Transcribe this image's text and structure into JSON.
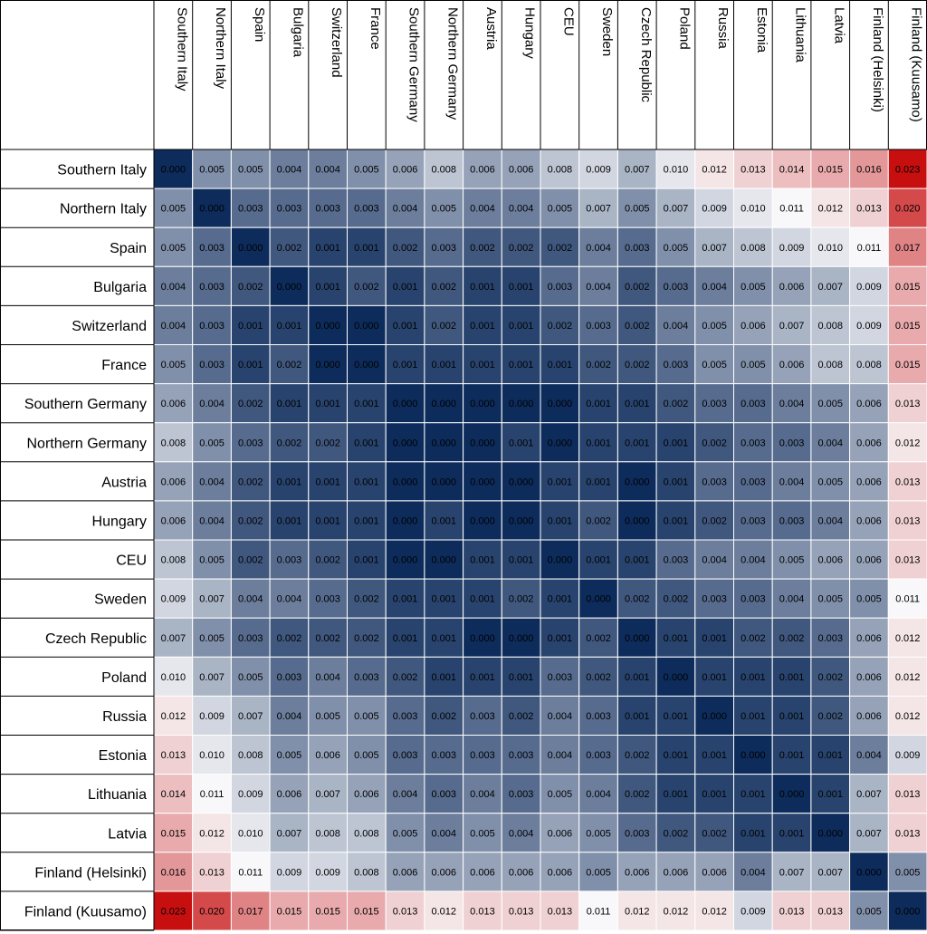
{
  "chart_data": {
    "type": "heatmap",
    "rows": [
      "Southern Italy",
      "Northern Italy",
      "Spain",
      "Bulgaria",
      "Switzerland",
      "France",
      "Southern Germany",
      "Northern Germany",
      "Austria",
      "Hungary",
      "CEU",
      "Sweden",
      "Czech Republic",
      "Poland",
      "Russia",
      "Estonia",
      "Lithuania",
      "Latvia",
      "Finland (Helsinki)",
      "Finland (Kuusamo)"
    ],
    "columns": [
      "Southern Italy",
      "Northern Italy",
      "Spain",
      "Bulgaria",
      "Switzerland",
      "France",
      "Southern Germany",
      "Northern Germany",
      "Austria",
      "Hungary",
      "CEU",
      "Sweden",
      "Czech Republic",
      "Poland",
      "Russia",
      "Estonia",
      "Lithuania",
      "Latvia",
      "Finland (Helsinki)",
      "Finland (Kuusamo)"
    ],
    "values": [
      [
        "0.000",
        "0.005",
        "0.005",
        "0.004",
        "0.004",
        "0.005",
        "0.006",
        "0.008",
        "0.006",
        "0.006",
        "0.008",
        "0.009",
        "0.007",
        "0.010",
        "0.012",
        "0.013",
        "0.014",
        "0.015",
        "0.016",
        "0.023"
      ],
      [
        "0.005",
        "0.000",
        "0.003",
        "0.003",
        "0.003",
        "0.003",
        "0.004",
        "0.005",
        "0.004",
        "0.004",
        "0.005",
        "0.007",
        "0.005",
        "0.007",
        "0.009",
        "0.010",
        "0.011",
        "0.012",
        "0.013",
        "0.020"
      ],
      [
        "0.005",
        "0.003",
        "0.000",
        "0.002",
        "0.001",
        "0.001",
        "0.002",
        "0.003",
        "0.002",
        "0.002",
        "0.002",
        "0.004",
        "0.003",
        "0.005",
        "0.007",
        "0.008",
        "0.009",
        "0.010",
        "0.011",
        "0.017"
      ],
      [
        "0.004",
        "0.003",
        "0.002",
        "0.000",
        "0.001",
        "0.002",
        "0.001",
        "0.002",
        "0.001",
        "0.001",
        "0.003",
        "0.004",
        "0.002",
        "0.003",
        "0.004",
        "0.005",
        "0.006",
        "0.007",
        "0.009",
        "0.015"
      ],
      [
        "0.004",
        "0.003",
        "0.001",
        "0.001",
        "0.000",
        "0.000",
        "0.001",
        "0.002",
        "0.001",
        "0.001",
        "0.002",
        "0.003",
        "0.002",
        "0.004",
        "0.005",
        "0.006",
        "0.007",
        "0.008",
        "0.009",
        "0.015"
      ],
      [
        "0.005",
        "0.003",
        "0.001",
        "0.002",
        "0.000",
        "0.000",
        "0.001",
        "0.001",
        "0.001",
        "0.001",
        "0.001",
        "0.002",
        "0.002",
        "0.003",
        "0.005",
        "0.005",
        "0.006",
        "0.008",
        "0.008",
        "0.015"
      ],
      [
        "0.006",
        "0.004",
        "0.002",
        "0.001",
        "0.001",
        "0.001",
        "0.000",
        "0.000",
        "0.000",
        "0.000",
        "0.000",
        "0.001",
        "0.001",
        "0.002",
        "0.003",
        "0.003",
        "0.004",
        "0.005",
        "0.006",
        "0.013"
      ],
      [
        "0.008",
        "0.005",
        "0.003",
        "0.002",
        "0.002",
        "0.001",
        "0.000",
        "0.000",
        "0.000",
        "0.001",
        "0.000",
        "0.001",
        "0.001",
        "0.001",
        "0.002",
        "0.003",
        "0.003",
        "0.004",
        "0.006",
        "0.012"
      ],
      [
        "0.006",
        "0.004",
        "0.002",
        "0.001",
        "0.001",
        "0.001",
        "0.000",
        "0.000",
        "0.000",
        "0.000",
        "0.001",
        "0.001",
        "0.000",
        "0.001",
        "0.003",
        "0.003",
        "0.004",
        "0.005",
        "0.006",
        "0.013"
      ],
      [
        "0.006",
        "0.004",
        "0.002",
        "0.001",
        "0.001",
        "0.001",
        "0.000",
        "0.001",
        "0.000",
        "0.000",
        "0.001",
        "0.002",
        "0.000",
        "0.001",
        "0.002",
        "0.003",
        "0.003",
        "0.004",
        "0.006",
        "0.013"
      ],
      [
        "0.008",
        "0.005",
        "0.002",
        "0.003",
        "0.002",
        "0.001",
        "0.000",
        "0.000",
        "0.001",
        "0.001",
        "0.000",
        "0.001",
        "0.001",
        "0.003",
        "0.004",
        "0.004",
        "0.005",
        "0.006",
        "0.006",
        "0.013"
      ],
      [
        "0.009",
        "0.007",
        "0.004",
        "0.004",
        "0.003",
        "0.002",
        "0.001",
        "0.001",
        "0.001",
        "0.002",
        "0.001",
        "0.000",
        "0.002",
        "0.002",
        "0.003",
        "0.003",
        "0.004",
        "0.005",
        "0.005",
        "0.011"
      ],
      [
        "0.007",
        "0.005",
        "0.003",
        "0.002",
        "0.002",
        "0.002",
        "0.001",
        "0.001",
        "0.000",
        "0.000",
        "0.001",
        "0.002",
        "0.000",
        "0.001",
        "0.001",
        "0.002",
        "0.002",
        "0.003",
        "0.006",
        "0.012"
      ],
      [
        "0.010",
        "0.007",
        "0.005",
        "0.003",
        "0.004",
        "0.003",
        "0.002",
        "0.001",
        "0.001",
        "0.001",
        "0.003",
        "0.002",
        "0.001",
        "0.000",
        "0.001",
        "0.001",
        "0.001",
        "0.002",
        "0.006",
        "0.012"
      ],
      [
        "0.012",
        "0.009",
        "0.007",
        "0.004",
        "0.005",
        "0.005",
        "0.003",
        "0.002",
        "0.003",
        "0.002",
        "0.004",
        "0.003",
        "0.001",
        "0.001",
        "0.000",
        "0.001",
        "0.001",
        "0.002",
        "0.006",
        "0.012"
      ],
      [
        "0.013",
        "0.010",
        "0.008",
        "0.005",
        "0.006",
        "0.005",
        "0.003",
        "0.003",
        "0.003",
        "0.003",
        "0.004",
        "0.003",
        "0.002",
        "0.001",
        "0.001",
        "0.000",
        "0.001",
        "0.001",
        "0.004",
        "0.009"
      ],
      [
        "0.014",
        "0.011",
        "0.009",
        "0.006",
        "0.007",
        "0.006",
        "0.004",
        "0.003",
        "0.004",
        "0.003",
        "0.005",
        "0.004",
        "0.002",
        "0.001",
        "0.001",
        "0.001",
        "0.000",
        "0.001",
        "0.007",
        "0.013"
      ],
      [
        "0.015",
        "0.012",
        "0.010",
        "0.007",
        "0.008",
        "0.008",
        "0.005",
        "0.004",
        "0.005",
        "0.004",
        "0.006",
        "0.005",
        "0.003",
        "0.002",
        "0.002",
        "0.001",
        "0.001",
        "0.000",
        "0.007",
        "0.013"
      ],
      [
        "0.016",
        "0.013",
        "0.011",
        "0.009",
        "0.009",
        "0.008",
        "0.006",
        "0.006",
        "0.006",
        "0.006",
        "0.006",
        "0.005",
        "0.006",
        "0.006",
        "0.006",
        "0.004",
        "0.007",
        "0.007",
        "0.000",
        "0.005"
      ],
      [
        "0.023",
        "0.020",
        "0.017",
        "0.015",
        "0.015",
        "0.015",
        "0.013",
        "0.012",
        "0.013",
        "0.013",
        "0.013",
        "0.011",
        "0.012",
        "0.012",
        "0.012",
        "0.009",
        "0.013",
        "0.013",
        "0.005",
        "0.000"
      ]
    ],
    "color_scale": {
      "low": "#0d2c5c",
      "mid": "#f8f8fa",
      "high": "#c80f10",
      "mid_value": 0.011,
      "max_value": 0.023
    }
  }
}
